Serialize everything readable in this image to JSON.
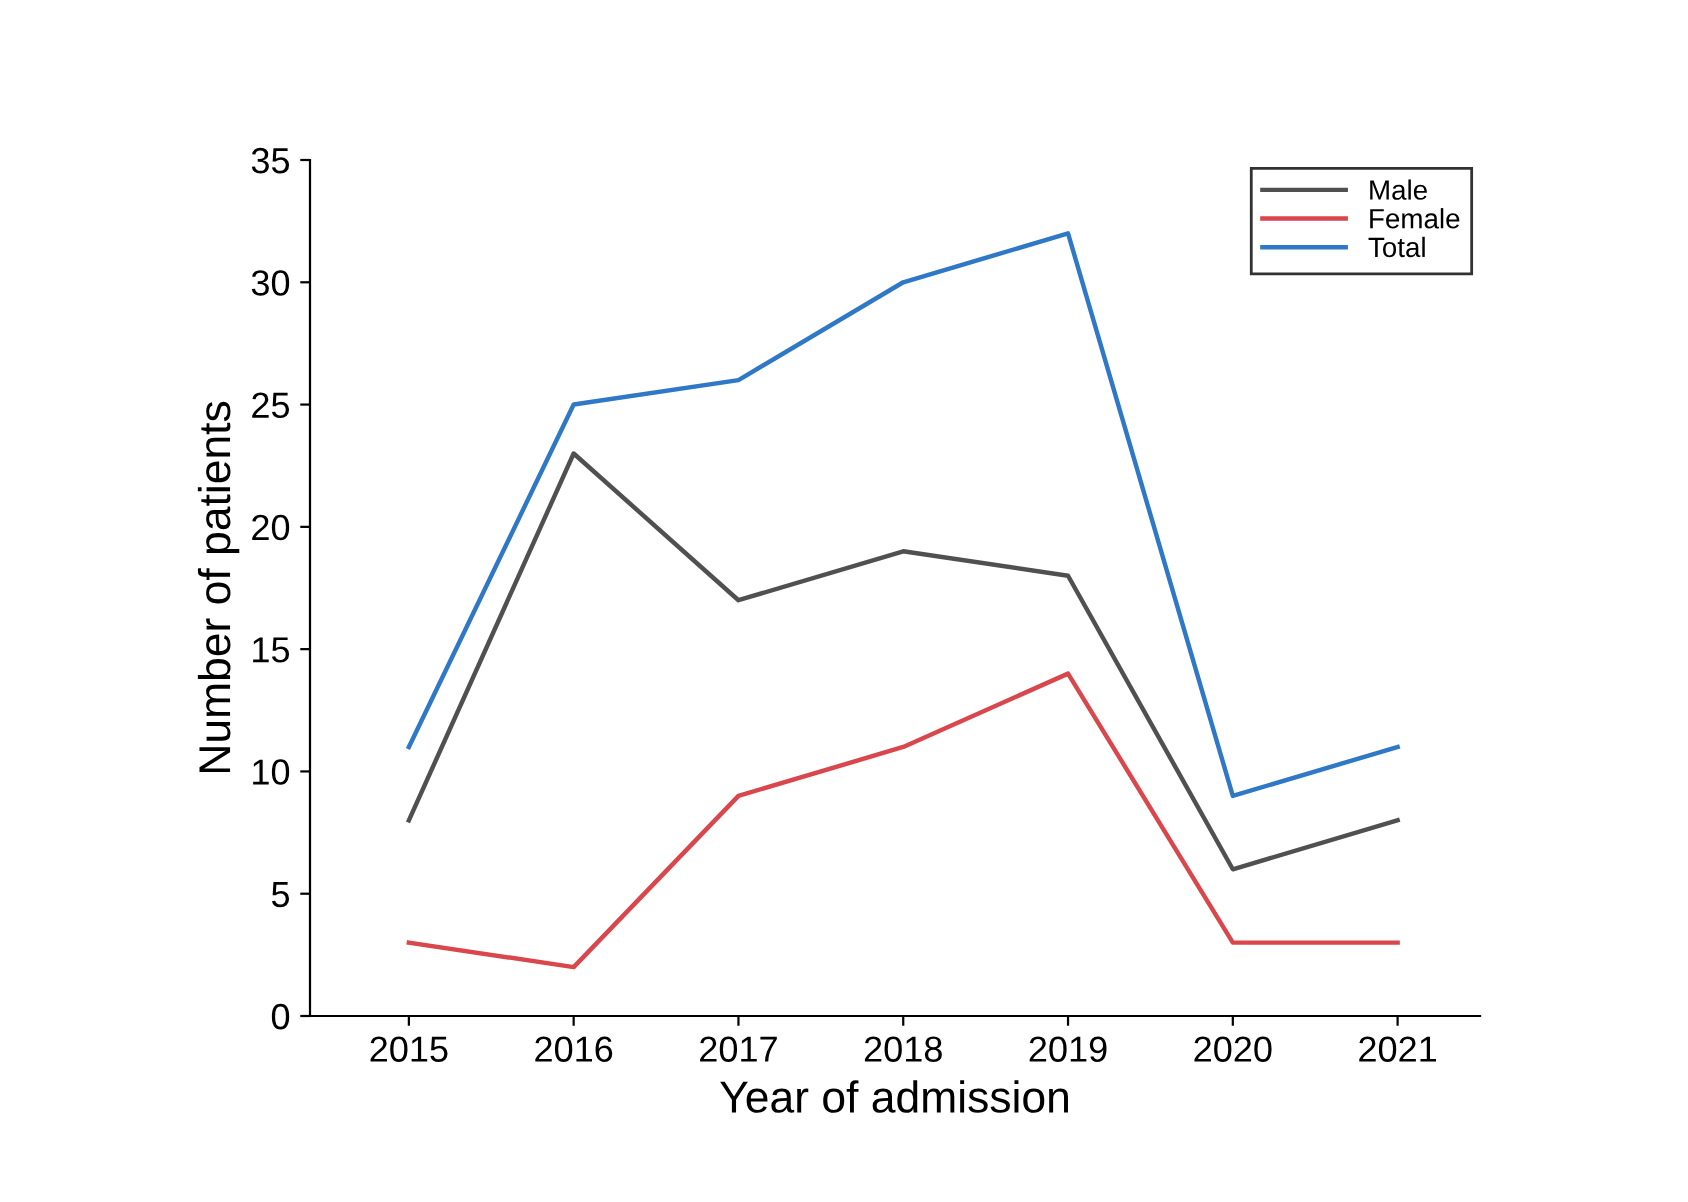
{
  "chart_data": {
    "type": "line",
    "xlabel": "Year of admission",
    "ylabel": "Number of patients",
    "x": [
      2015,
      2016,
      2017,
      2018,
      2019,
      2020,
      2021
    ],
    "series": [
      {
        "name": "Male",
        "color": "#505050",
        "values": [
          8,
          23,
          17,
          19,
          18,
          6,
          8
        ]
      },
      {
        "name": "Female",
        "color": "#d9464b",
        "values": [
          3,
          2,
          9,
          11,
          14,
          3,
          3
        ]
      },
      {
        "name": "Total",
        "color": "#2f78c8",
        "values": [
          11,
          25,
          26,
          30,
          32,
          9,
          11
        ]
      }
    ],
    "xlim": [
      2014.4,
      2021.5
    ],
    "xticks": [
      2015,
      2016,
      2017,
      2018,
      2019,
      2020,
      2021
    ],
    "ylim": [
      0,
      35
    ],
    "yticks": [
      0,
      5,
      10,
      15,
      20,
      25,
      30,
      35
    ],
    "grid": false,
    "legend": "top right",
    "marker": "none",
    "line_style": "solid"
  }
}
